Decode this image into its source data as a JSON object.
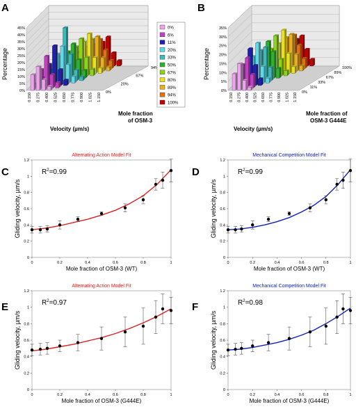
{
  "colors": {
    "fraction_palette": [
      "#e8a6ea",
      "#c040c0",
      "#2020b0",
      "#60d8e8",
      "#40b8b8",
      "#30b030",
      "#90d020",
      "#e8e020",
      "#e8b020",
      "#e07010",
      "#c00000"
    ],
    "alternating_fit": "#e02020",
    "competition_fit": "#1020c0"
  },
  "panels": {
    "A": {
      "label": "A",
      "ylabel": "Percentage",
      "xlabel": "Velocity (µm/s)",
      "zlabel_line1": "Mole fraction",
      "zlabel_line2": "of OSM-3",
      "yticks": [
        "45%",
        "40%",
        "35%",
        "30%",
        "25%",
        "20%",
        "15%",
        "10%",
        "5%",
        "0%"
      ],
      "xticks": [
        "0.150",
        "0.275",
        "0.400",
        "0.525",
        "0.650",
        "0.775",
        "0.900",
        "1.025",
        "1.150"
      ],
      "zticks": [
        "0%",
        "20%",
        "67%",
        "94%"
      ],
      "legend": [
        "0%",
        "6%",
        "11%",
        "20%",
        "33%",
        "50%",
        "67%",
        "80%",
        "89%",
        "94%",
        "100%"
      ]
    },
    "B": {
      "label": "B",
      "ylabel": "Percentage",
      "xlabel": "Velocity (µm/s)",
      "zlabel_line1": "Mole fraction of",
      "zlabel_line2": "OSM-3 G444E",
      "yticks": [
        "35%",
        "30%",
        "25%",
        "20%",
        "15%",
        "10%",
        "5%",
        "0%"
      ],
      "xticks": [
        "0.150",
        "0.275",
        "0.400",
        "0.525",
        "0.650",
        "0.775",
        "0.900",
        "1.025",
        "1.150"
      ],
      "zticks": [
        "0%",
        "11%",
        "33%",
        "67%",
        "89%",
        "100%"
      ]
    }
  },
  "chart_data": [
    {
      "panel": "C",
      "type": "scatter",
      "title": "Alternating Action Model Fit",
      "r2_base": "R",
      "r2_exp": "2",
      "r2_value": "=0.99",
      "xlabel": "Mole fraction of OSM-3 (WT)",
      "ylabel": "Gliding velocity, µm/s",
      "xlim": [
        0,
        1
      ],
      "ylim": [
        0,
        1.2
      ],
      "xticks": [
        "0",
        "0.2",
        "0.4",
        "0.6",
        "0.8",
        "1"
      ],
      "yticks": [
        "0",
        "0.2",
        "0.4",
        "0.6",
        "0.8",
        "1",
        "1.2"
      ],
      "x": [
        0,
        0.06,
        0.11,
        0.2,
        0.33,
        0.5,
        0.67,
        0.8,
        0.89,
        0.94,
        1
      ],
      "y": [
        0.34,
        0.34,
        0.35,
        0.4,
        0.47,
        0.54,
        0.61,
        0.71,
        0.9,
        0.95,
        1.07
      ],
      "err": [
        0.04,
        0.04,
        0.04,
        0.05,
        0.03,
        0.02,
        0.05,
        0.05,
        0.07,
        0.1,
        0.14
      ],
      "fit_x": [
        0,
        0.1,
        0.2,
        0.3,
        0.4,
        0.5,
        0.6,
        0.7,
        0.8,
        0.9,
        1
      ],
      "fit_y": [
        0.34,
        0.36,
        0.39,
        0.43,
        0.47,
        0.52,
        0.58,
        0.66,
        0.76,
        0.9,
        1.08
      ]
    },
    {
      "panel": "D",
      "type": "scatter",
      "title": "Mechanical Competition Model Fit",
      "r2_base": "R",
      "r2_exp": "2",
      "r2_value": "=0.99",
      "xlabel": "Mole fraction of OSM-3 (WT)",
      "ylabel": "Gliding velocity, µm/s",
      "xlim": [
        0,
        1
      ],
      "ylim": [
        0,
        1.2
      ],
      "xticks": [
        "0",
        "0.2",
        "0.4",
        "0.6",
        "0.8",
        "1"
      ],
      "yticks": [
        "0",
        "0.2",
        "0.4",
        "0.6",
        "0.8",
        "1",
        "1.2"
      ],
      "x": [
        0,
        0.06,
        0.11,
        0.2,
        0.33,
        0.5,
        0.67,
        0.8,
        0.89,
        0.94,
        1
      ],
      "y": [
        0.34,
        0.34,
        0.35,
        0.4,
        0.47,
        0.54,
        0.61,
        0.71,
        0.9,
        0.95,
        1.07
      ],
      "err": [
        0.04,
        0.04,
        0.04,
        0.05,
        0.03,
        0.02,
        0.05,
        0.05,
        0.07,
        0.1,
        0.14
      ],
      "fit_x": [
        0,
        0.1,
        0.2,
        0.3,
        0.4,
        0.5,
        0.6,
        0.7,
        0.8,
        0.9,
        1
      ],
      "fit_y": [
        0.34,
        0.35,
        0.37,
        0.4,
        0.44,
        0.49,
        0.56,
        0.64,
        0.75,
        0.9,
        1.08
      ]
    },
    {
      "panel": "E",
      "type": "scatter",
      "title": "Alternating Action Model Fit",
      "r2_base": "R",
      "r2_exp": "2",
      "r2_value": "=0.97",
      "xlabel": "Mole fraction of OSM-3 (G444E)",
      "ylabel": "Gliding velocity, µm/s",
      "xlim": [
        0,
        1
      ],
      "ylim": [
        0,
        1.2
      ],
      "xticks": [
        "0",
        "0.2",
        "0.4",
        "0.6",
        "0.8",
        "1"
      ],
      "yticks": [
        "0",
        "0.2",
        "0.4",
        "0.6",
        "0.8",
        "1",
        "1.2"
      ],
      "x": [
        0,
        0.06,
        0.11,
        0.2,
        0.33,
        0.5,
        0.67,
        0.8,
        0.89,
        0.94,
        1
      ],
      "y": [
        0.48,
        0.49,
        0.5,
        0.53,
        0.57,
        0.62,
        0.7,
        0.77,
        0.88,
        0.98,
        0.96
      ],
      "err": [
        0.07,
        0.07,
        0.07,
        0.07,
        0.1,
        0.14,
        0.18,
        0.22,
        0.2,
        0.18,
        0.16
      ],
      "fit_x": [
        0,
        0.1,
        0.2,
        0.3,
        0.4,
        0.5,
        0.6,
        0.7,
        0.8,
        0.9,
        1
      ],
      "fit_y": [
        0.47,
        0.49,
        0.52,
        0.55,
        0.59,
        0.63,
        0.68,
        0.74,
        0.81,
        0.89,
        0.98
      ]
    },
    {
      "panel": "F",
      "type": "scatter",
      "title": "Mechanical Competition Model Fit",
      "r2_base": "R",
      "r2_exp": "2",
      "r2_value": "=0.98",
      "xlabel": "Mole fraction of OSM-3 (G444E)",
      "ylabel": "Gliding velocity, µm/s",
      "xlim": [
        0,
        1
      ],
      "ylim": [
        0,
        1.2
      ],
      "xticks": [
        "0",
        "0.2",
        "0.4",
        "0.6",
        "0.8",
        "1"
      ],
      "yticks": [
        "0",
        "0.2",
        "0.4",
        "0.6",
        "0.8",
        "1",
        "1.2"
      ],
      "x": [
        0,
        0.06,
        0.11,
        0.2,
        0.33,
        0.5,
        0.67,
        0.8,
        0.89,
        0.94,
        1
      ],
      "y": [
        0.48,
        0.49,
        0.5,
        0.53,
        0.57,
        0.62,
        0.7,
        0.77,
        0.88,
        0.98,
        0.96
      ],
      "err": [
        0.07,
        0.07,
        0.07,
        0.07,
        0.1,
        0.14,
        0.18,
        0.22,
        0.2,
        0.18,
        0.16
      ],
      "fit_x": [
        0,
        0.1,
        0.2,
        0.3,
        0.4,
        0.5,
        0.6,
        0.7,
        0.8,
        0.9,
        1
      ],
      "fit_y": [
        0.48,
        0.49,
        0.51,
        0.54,
        0.57,
        0.61,
        0.66,
        0.72,
        0.8,
        0.89,
        0.99
      ]
    }
  ]
}
